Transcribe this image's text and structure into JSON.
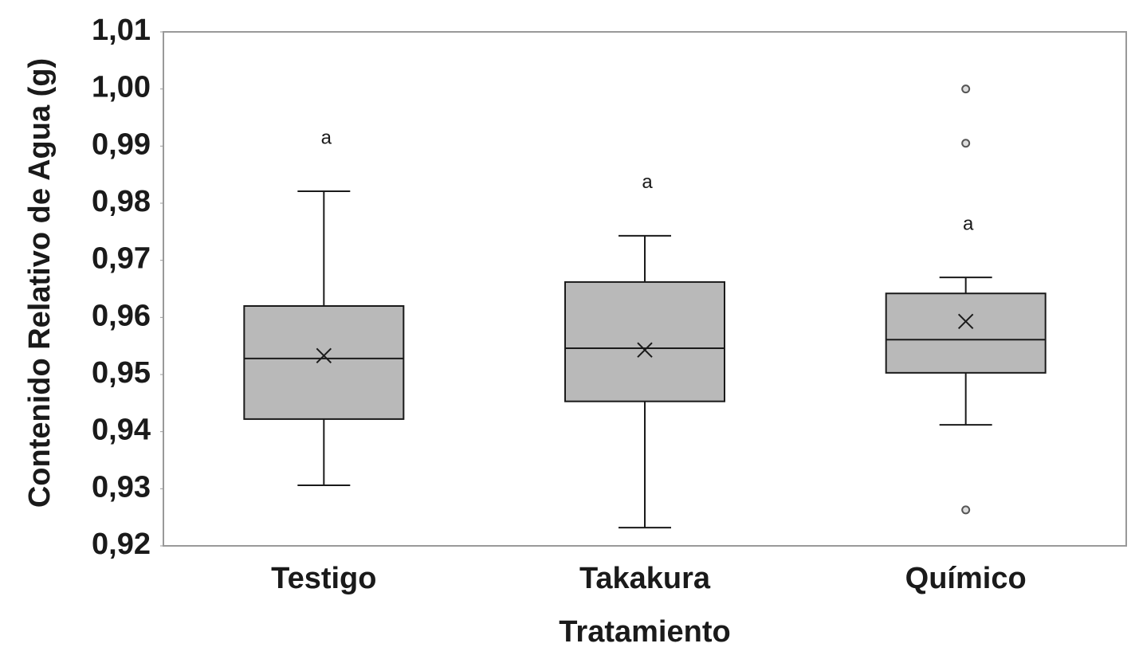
{
  "chart_data": {
    "type": "box",
    "x_label": "Tratamiento",
    "y_label": "Contenido Relativo de Agua (g)",
    "categories": [
      "Testigo",
      "Takakura",
      "Químico"
    ],
    "color": "#b9b9b9",
    "boxes": [
      {
        "whisker_low": 0.9306,
        "q1": 0.9422,
        "median": 0.9528,
        "q3": 0.962,
        "whisker_high": 0.9821,
        "mean": 0.9533,
        "outliers": [],
        "annotation": "a"
      },
      {
        "whisker_low": 0.9232,
        "q1": 0.9453,
        "median": 0.9546,
        "q3": 0.9662,
        "whisker_high": 0.9743,
        "mean": 0.9543,
        "outliers": [],
        "annotation": "a"
      },
      {
        "whisker_low": 0.9412,
        "q1": 0.9503,
        "median": 0.9561,
        "q3": 0.9642,
        "whisker_high": 0.967,
        "mean": 0.9593,
        "outliers": [
          1.0,
          0.9905,
          0.9263
        ],
        "annotation": "a"
      }
    ],
    "ylim": [
      0.92,
      1.01
    ],
    "yticks": [
      {
        "value": 0.92,
        "label": "0,92"
      },
      {
        "value": 0.93,
        "label": "0,93"
      },
      {
        "value": 0.94,
        "label": "0,94"
      },
      {
        "value": 0.95,
        "label": "0,95"
      },
      {
        "value": 0.96,
        "label": "0,96"
      },
      {
        "value": 0.97,
        "label": "0,97"
      },
      {
        "value": 0.98,
        "label": "0,98"
      },
      {
        "value": 0.99,
        "label": "0,99"
      },
      {
        "value": 1.0,
        "label": "1,00"
      },
      {
        "value": 1.01,
        "label": "1,01"
      }
    ]
  }
}
